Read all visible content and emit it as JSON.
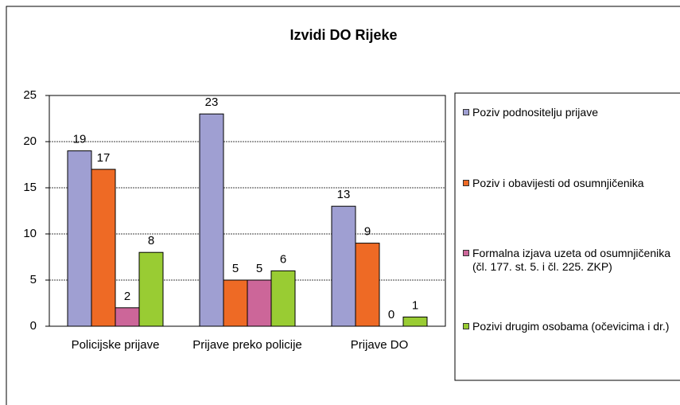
{
  "chart_data": {
    "type": "bar",
    "title": "Izvidi DO Rijeke",
    "categories": [
      "Policijske prijave",
      "Prijave preko policije",
      "Prijave DO"
    ],
    "series": [
      {
        "name": "Poziv podnositelju prijave",
        "color": "#9f9fd2",
        "values": [
          19,
          23,
          13
        ]
      },
      {
        "name": "Poziv i obavijesti od osumnjičenika",
        "color": "#ee6a25",
        "values": [
          17,
          5,
          9
        ]
      },
      {
        "name": "Formalna izjava uzeta  od osumnjičenika (čl. 177. st. 5.  i  čl. 225. ZKP)",
        "color": "#cc6699",
        "values": [
          2,
          5,
          0
        ]
      },
      {
        "name": "Pozivi drugim osobama (očevicima i dr.)",
        "color": "#99cc33",
        "values": [
          8,
          6,
          1
        ]
      }
    ],
    "ylim": [
      0,
      25
    ],
    "yticks": [
      0,
      5,
      10,
      15,
      20,
      25
    ],
    "grid": true,
    "legend": "right"
  }
}
